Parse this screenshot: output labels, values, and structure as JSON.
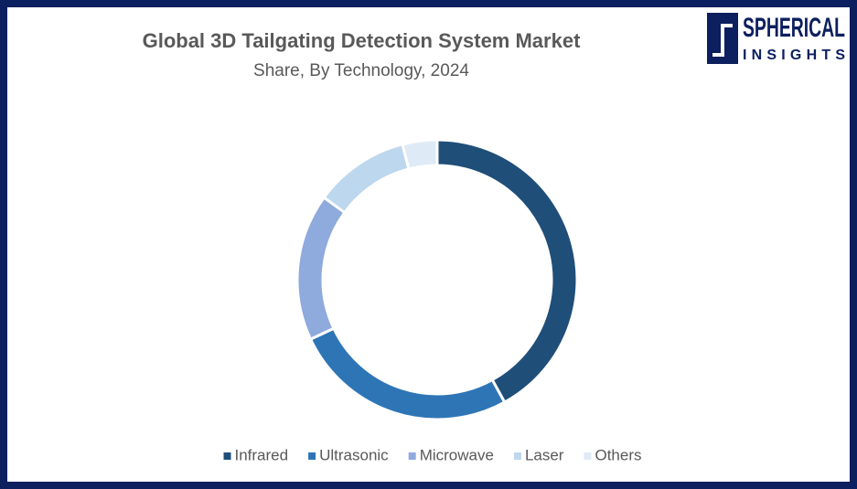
{
  "chart_data": {
    "type": "pie",
    "title": "Global 3D Tailgating Detection System Market",
    "subtitle": "Share, By Technology, 2024",
    "categories": [
      "Infrared",
      "Ultrasonic",
      "Microwave",
      "Laser",
      "Others"
    ],
    "values": [
      42,
      26,
      17,
      11,
      4
    ],
    "colors": [
      "#1f4e79",
      "#2e75b6",
      "#8faadc",
      "#bdd7ee",
      "#deebf7"
    ],
    "donut": true,
    "legend": "bottom"
  },
  "logo": [
    "SPHERICAL",
    "INSIGHTS"
  ]
}
